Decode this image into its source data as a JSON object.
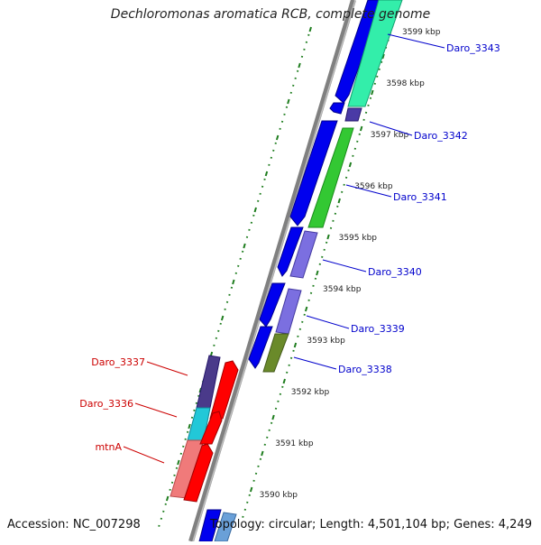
{
  "title": "Dechloromonas aromatica RCB, complete genome",
  "footer": {
    "accession": "Accession: NC_007298",
    "topology": "Topology: circular; Length: 4,501,104 bp; Genes: 4,249"
  },
  "colors": {
    "backbone": "#808080",
    "tick_green": "#1e7d1e",
    "label_blue": "#0000cc",
    "label_red": "#cc0000"
  },
  "scale_labels": [
    {
      "text": "3599 kbp",
      "kbp": 3599
    },
    {
      "text": "3598 kbp",
      "kbp": 3598
    },
    {
      "text": "3597 kbp",
      "kbp": 3597
    },
    {
      "text": "3596 kbp",
      "kbp": 3596
    },
    {
      "text": "3595 kbp",
      "kbp": 3595
    },
    {
      "text": "3594 kbp",
      "kbp": 3594
    },
    {
      "text": "3593 kbp",
      "kbp": 3593
    },
    {
      "text": "3592 kbp",
      "kbp": 3592
    },
    {
      "text": "3591 kbp",
      "kbp": 3591
    },
    {
      "text": "3590 kbp",
      "kbp": 3590
    }
  ],
  "gene_labels_right": [
    "Daro_3343",
    "Daro_3342",
    "Daro_3341",
    "Daro_3340",
    "Daro_3339",
    "Daro_3338"
  ],
  "gene_labels_left": [
    "Daro_3337",
    "Daro_3336",
    "mtnA"
  ]
}
